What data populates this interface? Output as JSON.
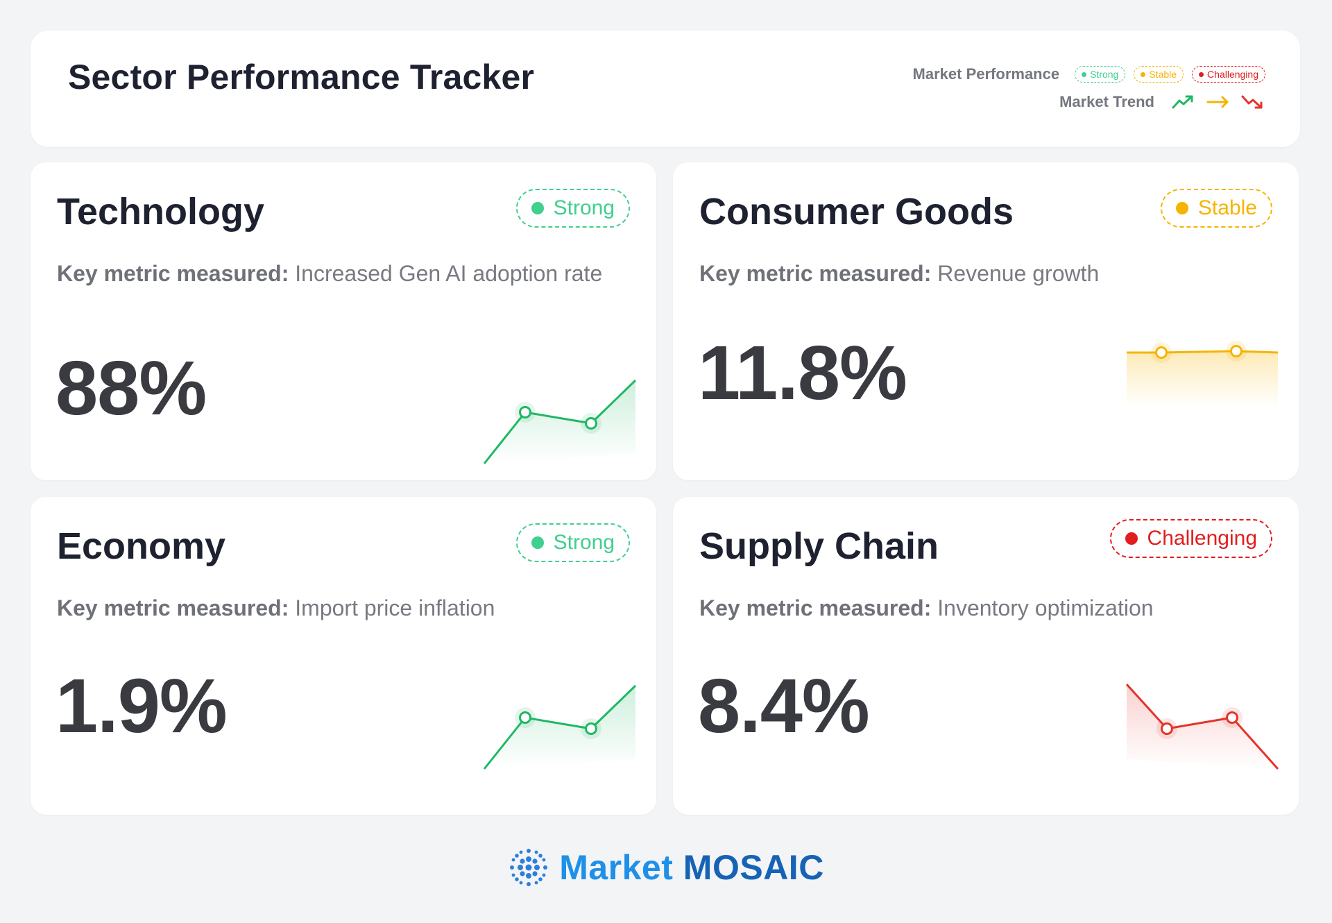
{
  "header": {
    "title": "Sector Performance Tracker",
    "performance_label": "Market Performance",
    "trend_label": "Market Trend",
    "performance_levels": [
      {
        "label": "Strong",
        "color": "#3fcf8e"
      },
      {
        "label": "Stable",
        "color": "#f5b400"
      },
      {
        "label": "Challenging",
        "color": "#e11d1d"
      }
    ],
    "trend_icons": [
      "trend-up-icon",
      "trend-flat-icon",
      "trend-down-icon"
    ]
  },
  "cards": [
    {
      "title": "Technology",
      "status": "Strong",
      "metric_label": "Key metric measured:",
      "metric_value": "Increased Gen AI adoption rate",
      "value": "88%",
      "trend": "up"
    },
    {
      "title": "Consumer Goods",
      "status": "Stable",
      "metric_label": "Key metric measured:",
      "metric_value": "Revenue growth",
      "value": "11.8%",
      "trend": "flat"
    },
    {
      "title": "Economy",
      "status": "Strong",
      "metric_label": "Key metric measured:",
      "metric_value": "Import price inflation",
      "value": "1.9%",
      "trend": "up"
    },
    {
      "title": "Supply Chain",
      "status": "Challenging",
      "metric_label": "Key metric measured:",
      "metric_value": "Inventory optimization",
      "value": "8.4%",
      "trend": "down"
    }
  ],
  "footer": {
    "brand_part1": "Market",
    "brand_part2": "MOSAIC",
    "logo_icon": "mosaic-dots-icon"
  }
}
